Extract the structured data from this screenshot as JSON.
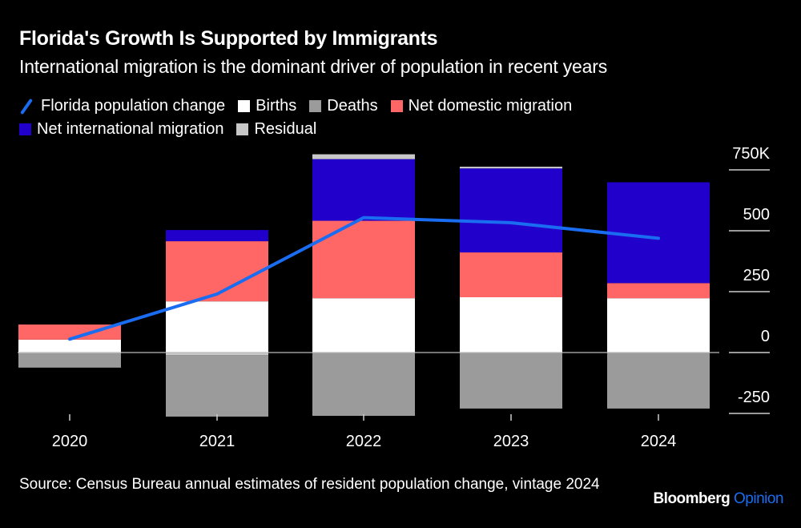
{
  "chart_data": {
    "type": "bar",
    "stacked": true,
    "title": "Florida's Growth Is Supported by Immigrants",
    "subtitle": "International migration is the dominant driver of population in recent years",
    "xlabel": "",
    "ylabel": "",
    "categories": [
      "2020",
      "2021",
      "2022",
      "2023",
      "2024"
    ],
    "ylim": [
      -260000,
      760000
    ],
    "yticks": [
      {
        "value": 750000,
        "label": "750K"
      },
      {
        "value": 500000,
        "label": "500"
      },
      {
        "value": 250000,
        "label": "250"
      },
      {
        "value": 0,
        "label": "0"
      },
      {
        "value": -250000,
        "label": "-250"
      }
    ],
    "grid": false,
    "legend_position": "top-left",
    "series": [
      {
        "name": "Births",
        "kind": "bar",
        "color": "#ffffff",
        "values": [
          53000,
          210000,
          223000,
          227000,
          223000
        ]
      },
      {
        "name": "Net domestic migration",
        "kind": "bar",
        "color": "#ff6666",
        "values": [
          62000,
          247000,
          318000,
          184000,
          62000
        ]
      },
      {
        "name": "Net international migration",
        "kind": "bar",
        "color": "#2200cc",
        "values": [
          0,
          46000,
          253000,
          345000,
          414000
        ]
      },
      {
        "name": "Deaths",
        "kind": "bar",
        "color": "#9b9b9b",
        "values": [
          -59000,
          -253000,
          -260000,
          -230000,
          -230000
        ]
      },
      {
        "name": "Residual",
        "kind": "bar",
        "color": "#c8c8c8",
        "values": [
          -3000,
          -10000,
          20000,
          7000,
          0
        ]
      },
      {
        "name": "Florida population change",
        "kind": "line",
        "color": "#1a6cf0",
        "values": [
          55000,
          240000,
          554000,
          533000,
          469000
        ]
      }
    ]
  },
  "legend": [
    {
      "label": "Florida population change",
      "type": "line",
      "color": "#1a6cf0"
    },
    {
      "label": "Births",
      "type": "box",
      "color": "#ffffff"
    },
    {
      "label": "Deaths",
      "type": "box",
      "color": "#9b9b9b"
    },
    {
      "label": "Net domestic migration",
      "type": "box",
      "color": "#ff6666"
    },
    {
      "label": "Net international migration",
      "type": "box",
      "color": "#2200cc"
    },
    {
      "label": "Residual",
      "type": "box",
      "color": "#c8c8c8"
    }
  ],
  "footer": {
    "source": "Source: Census Bureau annual estimates of resident population change, vintage 2024",
    "brand_main": "Bloomberg",
    "brand_accent": "Opinion"
  }
}
